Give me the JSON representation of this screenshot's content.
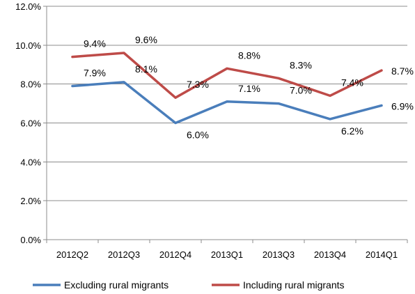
{
  "chart_data": {
    "type": "line",
    "categories": [
      "2012Q2",
      "2012Q3",
      "2012Q4",
      "2013Q1",
      "2013Q3",
      "2013Q4",
      "2014Q1"
    ],
    "series": [
      {
        "name": "Excluding rural migrants",
        "color": "#4a7ebb",
        "values": [
          7.9,
          8.1,
          6.0,
          7.1,
          7.0,
          6.2,
          6.9
        ],
        "labels": [
          "7.9%",
          "8.1%",
          "6.0%",
          "7.1%",
          "7.0%",
          "6.2%",
          "6.9%"
        ]
      },
      {
        "name": "Including rural migrants",
        "color": "#be4b48",
        "values": [
          9.4,
          9.6,
          7.3,
          8.8,
          8.3,
          7.4,
          8.7
        ],
        "labels": [
          "9.4%",
          "9.6%",
          "7.3%",
          "8.8%",
          "8.3%",
          "7.4%",
          "8.7%"
        ]
      }
    ],
    "y_ticks": [
      0,
      2,
      4,
      6,
      8,
      10,
      12
    ],
    "y_tick_labels": [
      "0.0%",
      "2.0%",
      "4.0%",
      "6.0%",
      "8.0%",
      "10.0%",
      "12.0%"
    ],
    "ylim": [
      0,
      12
    ],
    "grid": true,
    "legend_position": "bottom"
  }
}
